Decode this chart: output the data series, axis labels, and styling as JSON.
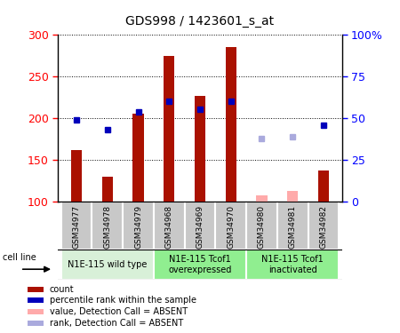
{
  "title": "GDS998 / 1423601_s_at",
  "samples": [
    "GSM34977",
    "GSM34978",
    "GSM34979",
    "GSM34968",
    "GSM34969",
    "GSM34970",
    "GSM34980",
    "GSM34981",
    "GSM34982"
  ],
  "count_values": [
    162,
    130,
    205,
    275,
    227,
    285,
    null,
    null,
    137
  ],
  "count_absent": [
    null,
    null,
    null,
    null,
    null,
    null,
    107,
    113,
    null
  ],
  "rank_values": [
    198,
    186,
    208,
    220,
    211,
    220,
    null,
    null,
    192
  ],
  "rank_absent": [
    null,
    null,
    null,
    null,
    null,
    null,
    176,
    178,
    null
  ],
  "ylim_left": [
    100,
    300
  ],
  "ylim_right": [
    0,
    100
  ],
  "yticks_left": [
    100,
    150,
    200,
    250,
    300
  ],
  "ytick_labels_right": [
    "0",
    "25",
    "50",
    "75",
    "100%"
  ],
  "groups": [
    {
      "label": "N1E-115 wild type",
      "indices": [
        0,
        1,
        2
      ],
      "color": "#d8f0d8"
    },
    {
      "label": "N1E-115 Tcof1\noverexpressed",
      "indices": [
        3,
        4,
        5
      ],
      "color": "#90ee90"
    },
    {
      "label": "N1E-115 Tcof1\ninactivated",
      "indices": [
        6,
        7,
        8
      ],
      "color": "#90ee90"
    }
  ],
  "bar_color_present": "#aa1100",
  "bar_color_absent": "#ffaaaa",
  "dot_color_present": "#0000bb",
  "dot_color_absent": "#aaaadd",
  "bar_width": 0.35,
  "cell_line_label": "cell line",
  "legend_items": [
    {
      "label": "count",
      "color": "#aa1100"
    },
    {
      "label": "percentile rank within the sample",
      "color": "#0000bb"
    },
    {
      "label": "value, Detection Call = ABSENT",
      "color": "#ffaaaa"
    },
    {
      "label": "rank, Detection Call = ABSENT",
      "color": "#aaaadd"
    }
  ],
  "background_color": "#ffffff",
  "plot_bg_color": "#ffffff",
  "label_box_color": "#c8c8c8",
  "title_fontsize": 10
}
